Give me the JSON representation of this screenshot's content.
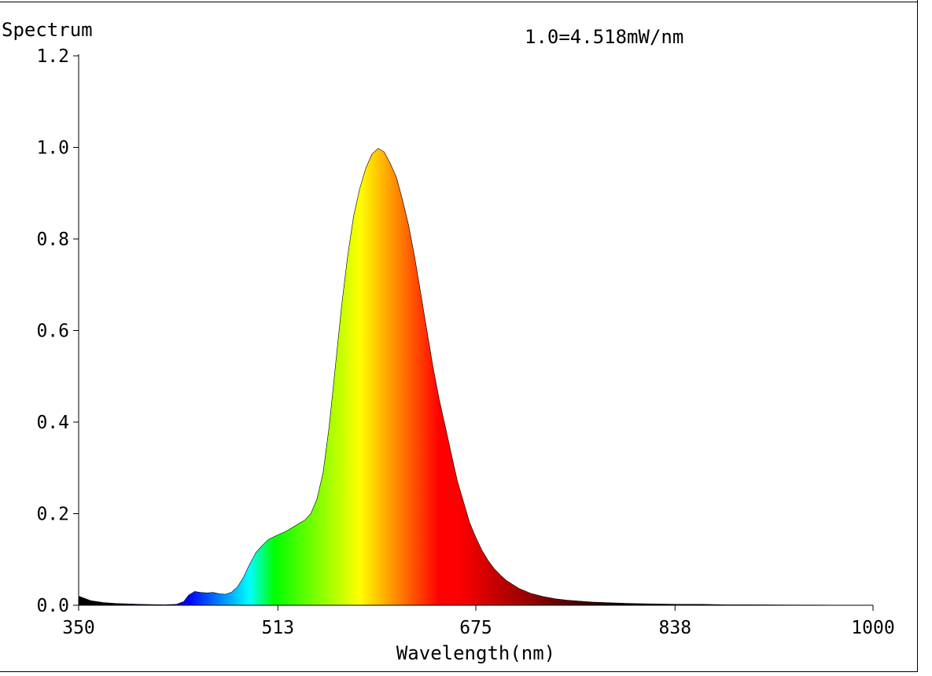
{
  "chart_data": {
    "type": "area",
    "title": "Spectrum",
    "annotation": "1.0=4.518mW/nm",
    "xlabel": "Wavelength(nm)",
    "ylabel": "",
    "xlim": [
      350,
      1000
    ],
    "ylim": [
      0,
      1.2
    ],
    "x_ticks": [
      "350",
      "513",
      "675",
      "838",
      "1000"
    ],
    "y_ticks": [
      "0.0",
      "0.2",
      "0.4",
      "0.6",
      "0.8",
      "1.0",
      "1.2"
    ],
    "grid": false,
    "fill": "wavelength-colored spectrum",
    "series": [
      {
        "x": [
          350,
          355,
          360,
          370,
          380,
          400,
          420,
          430,
          436,
          440,
          445,
          450,
          455,
          460,
          465,
          470,
          475,
          480,
          485,
          490,
          495,
          500,
          505,
          510,
          515,
          520,
          525,
          530,
          535,
          540,
          545,
          550,
          555,
          560,
          565,
          570,
          575,
          580,
          585,
          590,
          595,
          600,
          605,
          610,
          615,
          620,
          625,
          630,
          635,
          640,
          645,
          650,
          655,
          660,
          665,
          670,
          675,
          680,
          685,
          690,
          695,
          700,
          710,
          720,
          730,
          740,
          750,
          760,
          770,
          780,
          800,
          820,
          840,
          860,
          880,
          900,
          950,
          1000
        ],
        "values": [
          0.02,
          0.015,
          0.01,
          0.006,
          0.004,
          0.002,
          0.001,
          0.002,
          0.008,
          0.022,
          0.03,
          0.028,
          0.027,
          0.028,
          0.025,
          0.024,
          0.028,
          0.04,
          0.062,
          0.09,
          0.115,
          0.13,
          0.143,
          0.15,
          0.156,
          0.162,
          0.17,
          0.178,
          0.186,
          0.2,
          0.232,
          0.29,
          0.39,
          0.52,
          0.65,
          0.76,
          0.85,
          0.91,
          0.955,
          0.985,
          0.998,
          0.99,
          0.965,
          0.935,
          0.885,
          0.83,
          0.76,
          0.68,
          0.6,
          0.52,
          0.45,
          0.39,
          0.33,
          0.27,
          0.225,
          0.18,
          0.148,
          0.12,
          0.098,
          0.08,
          0.066,
          0.054,
          0.037,
          0.026,
          0.019,
          0.014,
          0.011,
          0.009,
          0.007,
          0.006,
          0.004,
          0.003,
          0.002,
          0.002,
          0.001,
          0.001,
          0.0005,
          0.0
        ]
      }
    ]
  }
}
